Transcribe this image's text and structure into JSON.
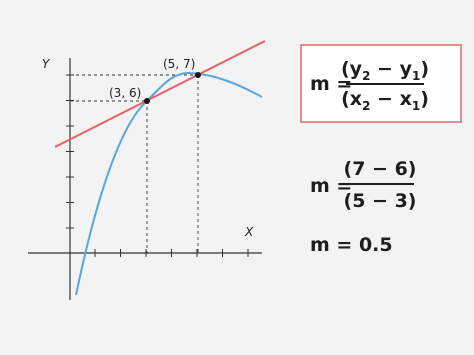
{
  "graph": {
    "y_axis_label": "Y",
    "x_axis_label": "X",
    "points": [
      {
        "label": "(3, 6)"
      },
      {
        "label": "(5, 7)"
      }
    ]
  },
  "formula": {
    "lhs": "m =",
    "numerator": [
      "(y",
      "2",
      " − y",
      "1",
      ")"
    ],
    "denominator": [
      "(x",
      "2",
      " − x",
      "1",
      ")"
    ]
  },
  "substitution": {
    "lhs": "m =",
    "numerator": "(7 − 6)",
    "denominator": "(5 − 3)"
  },
  "result": "m = 0.5"
}
